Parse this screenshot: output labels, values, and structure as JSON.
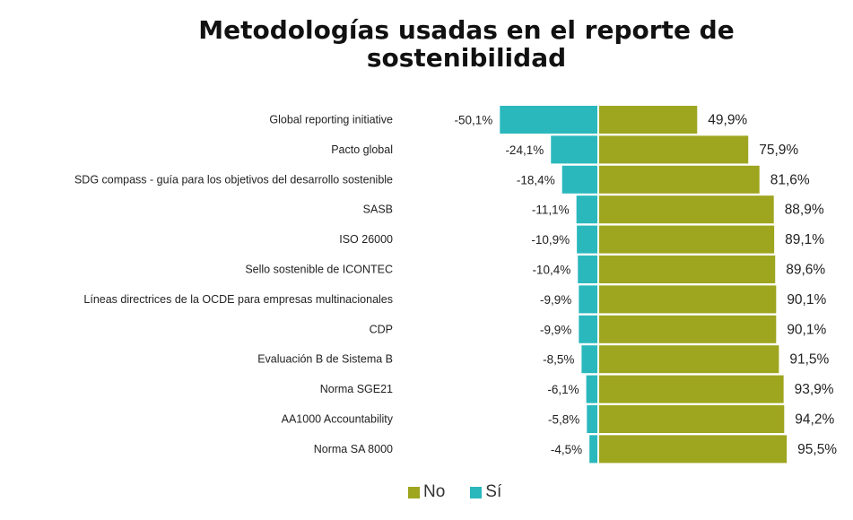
{
  "chart_data": {
    "type": "bar",
    "orientation": "horizontal-diverging",
    "title": "Metodologías usadas en el reporte de sostenibilidad",
    "categories": [
      "Global reporting initiative",
      "Pacto global",
      "SDG compass - guía para los objetivos del desarrollo sostenible",
      "SASB",
      "ISO 26000",
      "Sello sostenible de ICONTEC",
      "Líneas directrices de la OCDE para empresas multinacionales",
      "CDP",
      "Evaluación B de Sistema B",
      "Norma SGE21",
      "AA1000 Accountability",
      "Norma SA 8000"
    ],
    "series": [
      {
        "name": "Sí",
        "color": "#2ab8bd",
        "values": [
          -50.1,
          -24.1,
          -18.4,
          -11.1,
          -10.9,
          -10.4,
          -9.9,
          -9.9,
          -8.5,
          -6.1,
          -5.8,
          -4.5
        ],
        "labels": [
          "-50,1%",
          "-24,1%",
          "-18,4%",
          "-11,1%",
          "-10,9%",
          "-10,4%",
          "-9,9%",
          "-9,9%",
          "-8,5%",
          "-6,1%",
          "-5,8%",
          "-4,5%"
        ]
      },
      {
        "name": "No",
        "color": "#9ea51f",
        "values": [
          49.9,
          75.9,
          81.6,
          88.9,
          89.1,
          89.6,
          90.1,
          90.1,
          91.5,
          93.9,
          94.2,
          95.5
        ],
        "labels": [
          "49,9%",
          "75,9%",
          "81,6%",
          "88,9%",
          "89,1%",
          "89,6%",
          "90,1%",
          "90,1%",
          "91,5%",
          "93,9%",
          "94,2%",
          "95,5%"
        ]
      }
    ],
    "legend": [
      {
        "name": "No",
        "color": "#9ea51f"
      },
      {
        "name": "Sí",
        "color": "#2ab8bd"
      }
    ],
    "legend_position": "bottom",
    "grid": false,
    "xlim": [
      -50.1,
      95.5
    ]
  }
}
